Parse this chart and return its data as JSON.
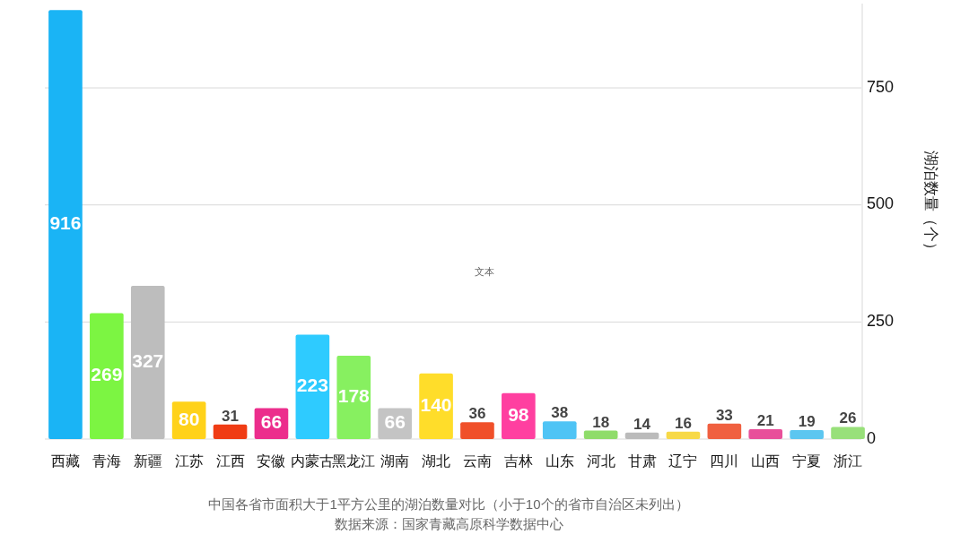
{
  "chart_data": {
    "type": "bar",
    "title": "中国各省市面积大于1平方公里的湖泊数量对比（小于10个的省市自治区未列出）",
    "annotations": [
      "文本",
      "数据来源：国家青藏高原科学数据中心"
    ],
    "ylabel": "湖泊数量（个）",
    "categories": [
      "西藏",
      "青海",
      "新疆",
      "江苏",
      "江西",
      "安徽",
      "内蒙古",
      "黑龙江",
      "湖南",
      "湖北",
      "云南",
      "吉林",
      "山东",
      "河北",
      "甘肃",
      "辽宁",
      "四川",
      "山西",
      "宁夏",
      "浙江"
    ],
    "values": [
      916,
      269,
      327,
      80,
      31,
      66,
      223,
      178,
      66,
      140,
      36,
      98,
      38,
      18,
      14,
      16,
      33,
      21,
      19,
      26
    ],
    "colors": [
      "#1ab4f5",
      "#7cf542",
      "#bdbdbd",
      "#ffd21a",
      "#f03c14",
      "#ec2d8c",
      "#2ecbff",
      "#87f060",
      "#c4c4c4",
      "#ffdd2a",
      "#f0502a",
      "#ff3fa0",
      "#4fc4f5",
      "#8fdc6a",
      "#bbbbbb",
      "#f7d948",
      "#f06040",
      "#e8509a",
      "#5cc6f0",
      "#98e07a"
    ],
    "ylim": [
      0,
      930
    ],
    "yticks": [
      0,
      250,
      500,
      750
    ],
    "grid": "y",
    "data_labels": true
  }
}
